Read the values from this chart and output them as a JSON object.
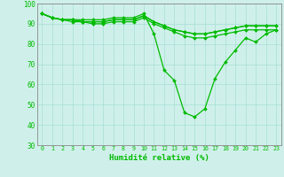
{
  "xlabel": "Humidité relative (%)",
  "bg_color": "#cff0ea",
  "grid_color": "#a8ddd6",
  "line_color": "#00bb00",
  "xlim": [
    -0.5,
    23.5
  ],
  "ylim": [
    30,
    100
  ],
  "yticks": [
    30,
    40,
    50,
    60,
    70,
    80,
    90,
    100
  ],
  "xticks": [
    0,
    1,
    2,
    3,
    4,
    5,
    6,
    7,
    8,
    9,
    10,
    11,
    12,
    13,
    14,
    15,
    16,
    17,
    18,
    19,
    20,
    21,
    22,
    23
  ],
  "series": [
    [
      95,
      93,
      92,
      92,
      92,
      92,
      92,
      93,
      93,
      93,
      95,
      85,
      67,
      62,
      46,
      44,
      48,
      63,
      71,
      77,
      83,
      81,
      85,
      87
    ],
    [
      95,
      93,
      92,
      92,
      91,
      91,
      91,
      92,
      92,
      92,
      94,
      91,
      89,
      87,
      86,
      85,
      85,
      86,
      87,
      88,
      89,
      89,
      89,
      89
    ],
    [
      95,
      93,
      92,
      92,
      91,
      91,
      91,
      92,
      92,
      92,
      94,
      91,
      89,
      87,
      86,
      85,
      85,
      86,
      87,
      88,
      89,
      89,
      89,
      89
    ],
    [
      95,
      93,
      92,
      91,
      91,
      90,
      90,
      91,
      91,
      91,
      93,
      90,
      88,
      86,
      84,
      83,
      83,
      84,
      85,
      86,
      87,
      87,
      87,
      87
    ]
  ]
}
